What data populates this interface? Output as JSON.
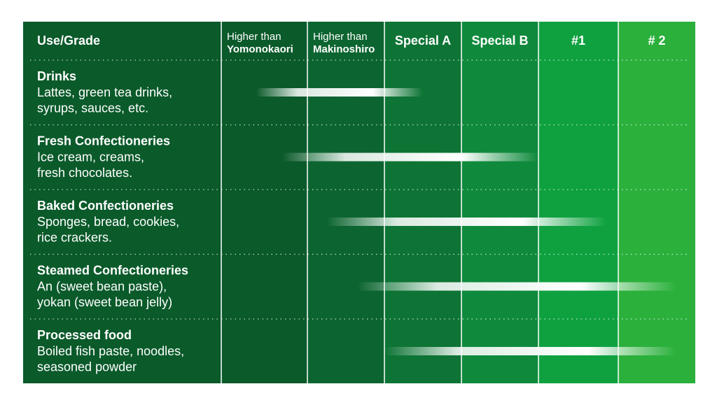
{
  "chart_data": {
    "type": "table",
    "corner_label": "Use/Grade",
    "columns": [
      {
        "line1": "Higher than",
        "line2": "Yomonokaori"
      },
      {
        "line1": "Higher than",
        "line2": "Makinoshiro"
      },
      {
        "label": "Special A"
      },
      {
        "label": "Special B"
      },
      {
        "label": "#1"
      },
      {
        "label": "# 2"
      }
    ],
    "column_colors": [
      "#0a5a2a",
      "#0c6530",
      "#0d7435",
      "#0f8a3c",
      "#0fa140",
      "#2bb03c"
    ],
    "label_column_color": "#0a5a2a",
    "rows": [
      {
        "title": "Drinks",
        "desc": [
          "Lattes, green tea drinks,",
          "syrups, sauces, etc."
        ],
        "range_start_col": 0.4,
        "range_end_col": 2.5
      },
      {
        "title": "Fresh Confectioneries",
        "desc": [
          "Ice cream, creams,",
          "fresh chocolates."
        ],
        "range_start_col": 0.7,
        "range_end_col": 4.0
      },
      {
        "title": "Baked Confectioneries",
        "desc": [
          "Sponges, bread, cookies,",
          "rice crackers."
        ],
        "range_start_col": 1.25,
        "range_end_col": 4.85
      },
      {
        "title": "Steamed Confectioneries",
        "desc": [
          "An (sweet bean paste),",
          "yokan (sweet bean jelly)"
        ],
        "range_start_col": 1.65,
        "range_end_col": 5.75
      },
      {
        "title": "Processed food",
        "desc": [
          "Boiled fish paste, noodles,",
          "seasoned powder"
        ],
        "range_start_col": 2.0,
        "range_end_col": 5.75
      }
    ]
  }
}
